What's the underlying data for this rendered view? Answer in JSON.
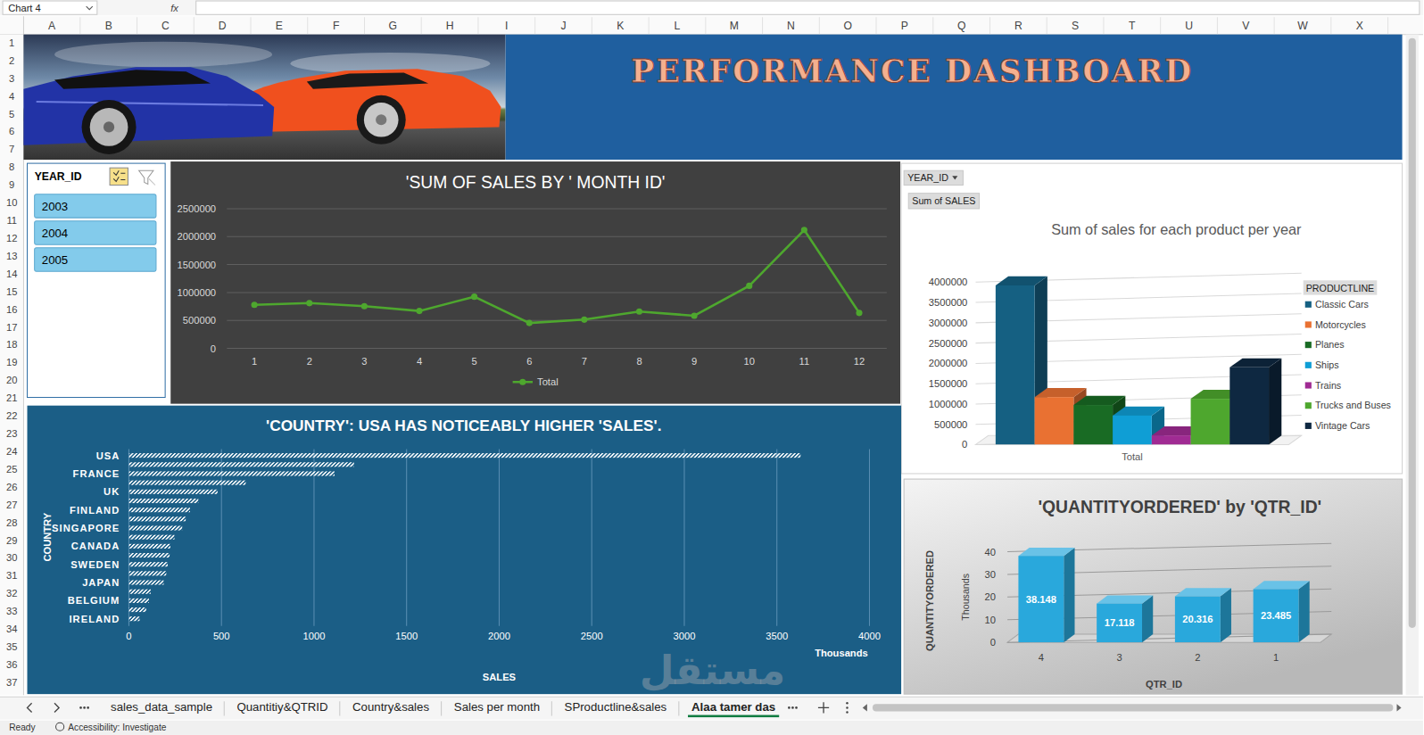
{
  "app": {
    "name_box": "Chart 4",
    "formula_label": "fx",
    "columns": [
      "A",
      "B",
      "C",
      "D",
      "E",
      "F",
      "G",
      "H",
      "I",
      "J",
      "K",
      "L",
      "M",
      "N",
      "O",
      "P",
      "Q",
      "R",
      "S",
      "T",
      "U",
      "V",
      "W",
      "X"
    ],
    "rows": [
      1,
      2,
      3,
      4,
      5,
      6,
      7,
      8,
      9,
      10,
      11,
      12,
      13,
      14,
      15,
      16,
      17,
      18,
      19,
      20,
      21,
      22,
      23,
      24,
      25,
      26,
      27,
      28,
      29,
      30,
      31,
      32,
      33,
      34,
      35,
      36,
      37
    ],
    "sheet_tabs": [
      "sales_data_sample",
      "Quantitiy&QTRID",
      "Country&sales",
      "Sales per month",
      "SProductline&sales",
      "Alaa tamer das"
    ],
    "status": [
      "Ready",
      "Accessibility: Investigate"
    ]
  },
  "dashboard": {
    "title": "PERFORMANCE DASHBOARD",
    "slicer": {
      "title": "YEAR_ID",
      "items": [
        "2003",
        "2004",
        "2005"
      ]
    },
    "pivot_buttons": [
      "YEAR_ID",
      "Sum of SALES"
    ],
    "watermark": "مستقل"
  },
  "chart_data": [
    {
      "type": "line",
      "title": "'SUM OF SALES BY  ' MONTH ID'",
      "categories": [
        "1",
        "2",
        "3",
        "4",
        "5",
        "6",
        "7",
        "8",
        "9",
        "10",
        "11",
        "12"
      ],
      "series": [
        {
          "name": "Total",
          "color": "#4ea72e",
          "values": [
            780000,
            810000,
            755000,
            670000,
            925000,
            455000,
            515000,
            660000,
            585000,
            1120000,
            2120000,
            635000
          ]
        }
      ],
      "ylim": [
        0,
        2500000
      ],
      "yticks": [
        0,
        500000,
        1000000,
        1500000,
        2000000,
        2500000
      ],
      "grid": true,
      "legend": "bottom",
      "marker": "circle"
    },
    {
      "type": "bar",
      "title": "Sum of sales for each product per year",
      "categories": [
        "Total"
      ],
      "series": [
        {
          "name": "Classic Cars",
          "color": "#156082",
          "values": [
            3920000
          ]
        },
        {
          "name": "Motorcycles",
          "color": "#e97132",
          "values": [
            1170000
          ]
        },
        {
          "name": "Planes",
          "color": "#196b24",
          "values": [
            975000
          ]
        },
        {
          "name": "Ships",
          "color": "#0f9ed5",
          "values": [
            715000
          ]
        },
        {
          "name": "Trains",
          "color": "#a02b93",
          "values": [
            226000
          ]
        },
        {
          "name": "Trucks and Buses",
          "color": "#4ea72e",
          "values": [
            1128000
          ]
        },
        {
          "name": "Vintage Cars",
          "color": "#0e2841",
          "values": [
            1903000
          ]
        }
      ],
      "ylim": [
        0,
        4000000
      ],
      "yticks": [
        0,
        500000,
        1000000,
        1500000,
        2000000,
        2500000,
        3000000,
        3500000,
        4000000
      ],
      "grid": true,
      "legend": "right",
      "legend_title": "PRODUCTLINE"
    },
    {
      "type": "bar",
      "orientation": "horizontal",
      "title": "'COUNTRY': USA HAS NOTICEABLY HIGHER 'SALES'.",
      "categories": [
        "USA",
        null,
        "FRANCE",
        null,
        "UK",
        null,
        "FINLAND",
        null,
        "SINGAPORE",
        null,
        "CANADA",
        null,
        "SWEDEN",
        null,
        "JAPAN",
        null,
        "BELGIUM",
        null,
        "IRELAND"
      ],
      "values": [
        3628,
        1216,
        1111,
        631,
        479,
        375,
        330,
        307,
        288,
        246,
        224,
        220,
        210,
        202,
        188,
        118,
        108,
        94,
        58
      ],
      "color": "#ffffff",
      "xlim": [
        0,
        4000
      ],
      "xticks": [
        0,
        500,
        1000,
        1500,
        2000,
        2500,
        3000,
        3500,
        4000
      ],
      "x_label": "SALES",
      "y_label": "COUNTRY",
      "x_unit_label": "Thousands",
      "grid": true
    },
    {
      "type": "bar",
      "title": "'QUANTITYORDERED' by 'QTR_ID'",
      "categories": [
        "4",
        "3",
        "2",
        "1"
      ],
      "values": [
        38.148,
        17.118,
        20.316,
        23.485
      ],
      "color": "#29a8dc",
      "ylim": [
        0,
        40
      ],
      "yticks": [
        0,
        10,
        20,
        30,
        40
      ],
      "x_label": "QTR_ID",
      "y_label": "QUANTITYORDERED",
      "y_unit_label": "Thousands",
      "data_labels": true,
      "grid": true
    }
  ]
}
